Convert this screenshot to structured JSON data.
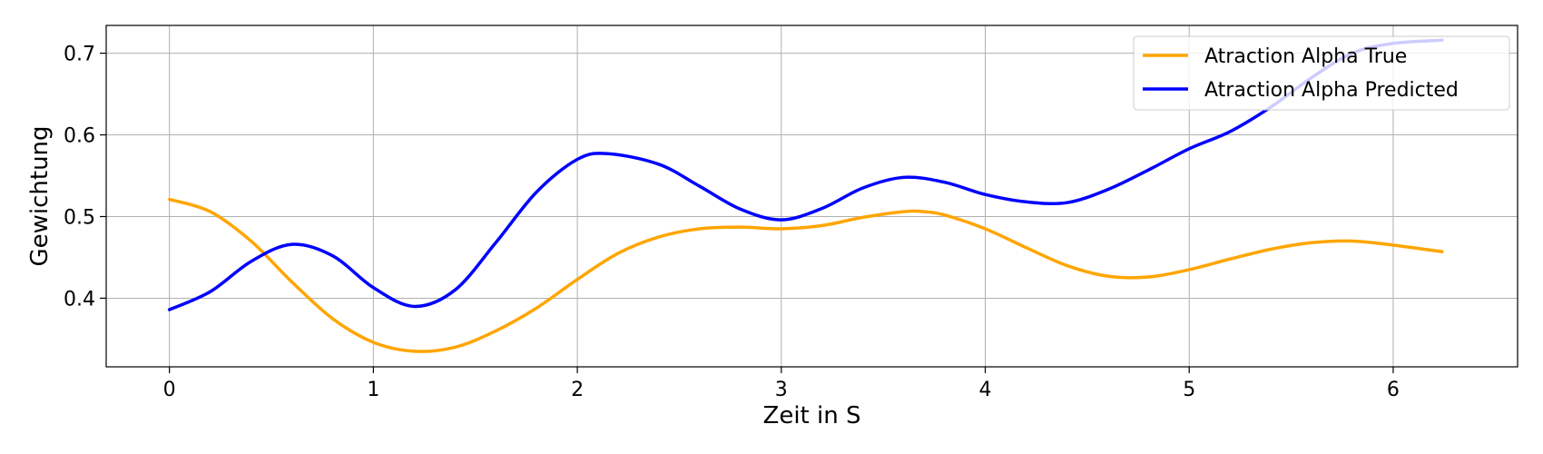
{
  "chart_data": {
    "type": "line",
    "xlabel": "Zeit in S",
    "ylabel": "Gewichtung",
    "xlim": [
      -0.31,
      6.61
    ],
    "ylim": [
      0.316,
      0.734
    ],
    "xticks": [
      0,
      1,
      2,
      3,
      4,
      5,
      6
    ],
    "xtick_labels": [
      "0",
      "1",
      "2",
      "3",
      "4",
      "5",
      "6"
    ],
    "yticks": [
      0.4,
      0.5,
      0.6,
      0.7
    ],
    "ytick_labels": [
      "0.4",
      "0.5",
      "0.6",
      "0.7"
    ],
    "grid": true,
    "legend_position": "top-right",
    "series": [
      {
        "name": "Atraction Alpha True",
        "color": "#FFA500",
        "x": [
          0,
          0.2,
          0.4,
          0.6,
          0.8,
          1.0,
          1.2,
          1.4,
          1.6,
          1.8,
          2.0,
          2.2,
          2.4,
          2.6,
          2.8,
          3.0,
          3.2,
          3.4,
          3.6,
          3.7,
          3.8,
          4.0,
          4.2,
          4.4,
          4.6,
          4.8,
          5.0,
          5.2,
          5.4,
          5.6,
          5.8,
          6.0,
          6.24
        ],
        "y": [
          0.521,
          0.506,
          0.47,
          0.42,
          0.375,
          0.346,
          0.335,
          0.34,
          0.36,
          0.388,
          0.423,
          0.455,
          0.475,
          0.485,
          0.487,
          0.485,
          0.489,
          0.499,
          0.506,
          0.506,
          0.502,
          0.485,
          0.462,
          0.44,
          0.427,
          0.426,
          0.435,
          0.448,
          0.46,
          0.468,
          0.47,
          0.465,
          0.457
        ]
      },
      {
        "name": "Atraction Alpha Predicted",
        "color": "#0000FF",
        "x": [
          0,
          0.2,
          0.4,
          0.6,
          0.8,
          1.0,
          1.2,
          1.4,
          1.6,
          1.8,
          2.0,
          2.15,
          2.4,
          2.6,
          2.8,
          3.0,
          3.2,
          3.4,
          3.6,
          3.8,
          4.0,
          4.2,
          4.4,
          4.6,
          4.8,
          5.0,
          5.2,
          5.4,
          5.6,
          5.8,
          6.0,
          6.24
        ],
        "y": [
          0.386,
          0.408,
          0.445,
          0.466,
          0.452,
          0.413,
          0.39,
          0.41,
          0.468,
          0.53,
          0.57,
          0.577,
          0.564,
          0.537,
          0.509,
          0.496,
          0.51,
          0.535,
          0.548,
          0.542,
          0.527,
          0.518,
          0.517,
          0.533,
          0.557,
          0.583,
          0.604,
          0.634,
          0.67,
          0.7,
          0.712,
          0.716
        ]
      }
    ]
  }
}
